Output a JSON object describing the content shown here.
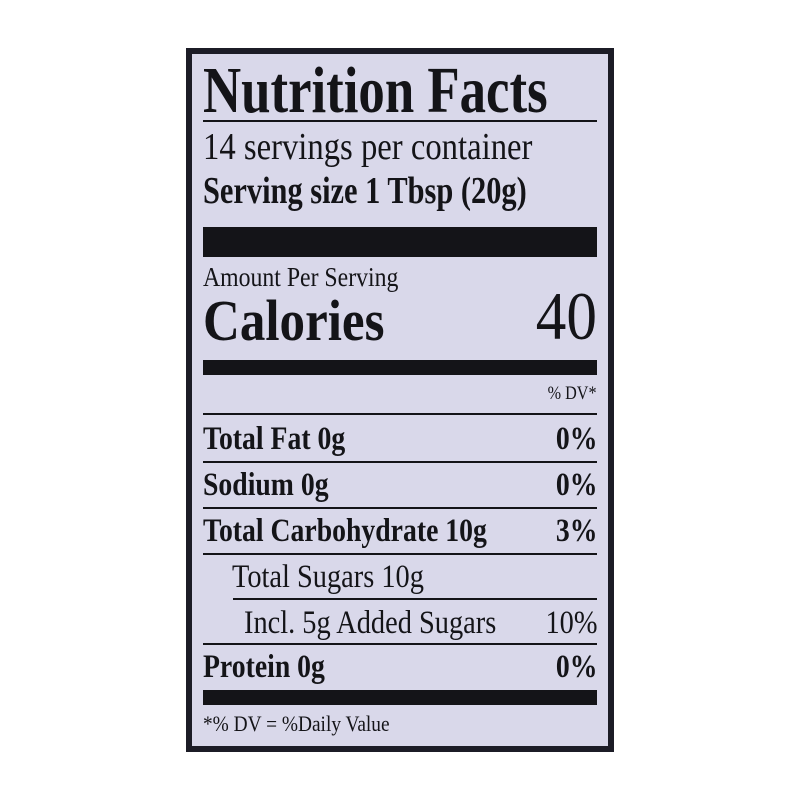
{
  "label": {
    "title": "Nutrition Facts",
    "servings_per_container": "14 servings per container",
    "serving_size": "Serving size  1 Tbsp (20g)",
    "amount_per_serving": "Amount Per Serving",
    "calories_label": "Calories",
    "calories_value": "40",
    "dv_header": "% DV*",
    "nutrients": [
      {
        "name": "Total Fat 0g",
        "dv": "0%"
      },
      {
        "name": "Sodium 0g",
        "dv": "0%"
      },
      {
        "name": "Total Carbohydrate 10g",
        "dv": "3%"
      },
      {
        "name": "Total Sugars 10g",
        "dv": ""
      },
      {
        "name": "Incl. 5g Added Sugars",
        "dv": "10%"
      },
      {
        "name": "Protein 0g",
        "dv": "0%"
      }
    ],
    "footnote": "*% DV = %Daily Value"
  }
}
